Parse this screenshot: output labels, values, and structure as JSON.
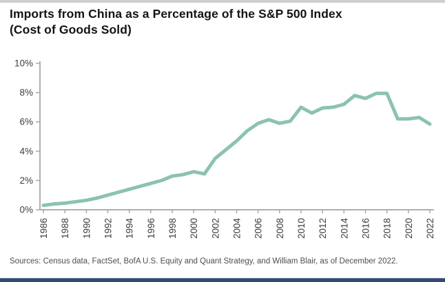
{
  "page": {
    "top_bar_color": "#cfcfcf",
    "bottom_bar_color": "#2d4b7c",
    "rule_color": "#909090"
  },
  "header": {
    "title": "Imports from China as a Percentage of the S&P 500 Index\n(Cost of Goods Sold)"
  },
  "chart_data": {
    "type": "line",
    "title": "Imports from China as a Percentage of the S&P 500 Index (Cost of Goods Sold)",
    "series_name": "Imports from China as % of S&P 500 cost of goods sold",
    "x": [
      1986,
      1987,
      1988,
      1989,
      1990,
      1991,
      1992,
      1993,
      1994,
      1995,
      1996,
      1997,
      1998,
      1999,
      2000,
      2001,
      2002,
      2003,
      2004,
      2005,
      2006,
      2007,
      2008,
      2009,
      2010,
      2011,
      2012,
      2013,
      2014,
      2015,
      2016,
      2017,
      2018,
      2019,
      2020,
      2021,
      2022
    ],
    "values": [
      0.3,
      0.4,
      0.45,
      0.55,
      0.65,
      0.8,
      1.0,
      1.2,
      1.4,
      1.6,
      1.8,
      2.0,
      2.3,
      2.4,
      2.6,
      2.45,
      3.5,
      4.1,
      4.7,
      5.4,
      5.9,
      6.15,
      5.9,
      6.05,
      7.0,
      6.6,
      6.95,
      7.0,
      7.2,
      7.8,
      7.6,
      7.95,
      7.95,
      6.2,
      6.2,
      6.3,
      5.85
    ],
    "ylim": [
      0,
      10
    ],
    "yticks": [
      0,
      2,
      4,
      6,
      8,
      10
    ],
    "ytick_labels": [
      "0%",
      "2%",
      "4%",
      "6%",
      "8%",
      "10%"
    ],
    "xtick_years": [
      1986,
      1988,
      1990,
      1992,
      1994,
      1996,
      1998,
      2000,
      2002,
      2004,
      2006,
      2008,
      2010,
      2012,
      2014,
      2016,
      2018,
      2020,
      2022
    ],
    "xlabel": "",
    "ylabel": "",
    "grid": false,
    "legend_position": "none",
    "line_color": "#8bc3ac",
    "axis_color": "#a3a3a3",
    "tick_text_color": "#3d3d3d"
  },
  "footer": {
    "sources": "Sources: Census data, FactSet, BofA U.S. Equity and Quant Strategy, and William Blair, as of December 2022."
  }
}
